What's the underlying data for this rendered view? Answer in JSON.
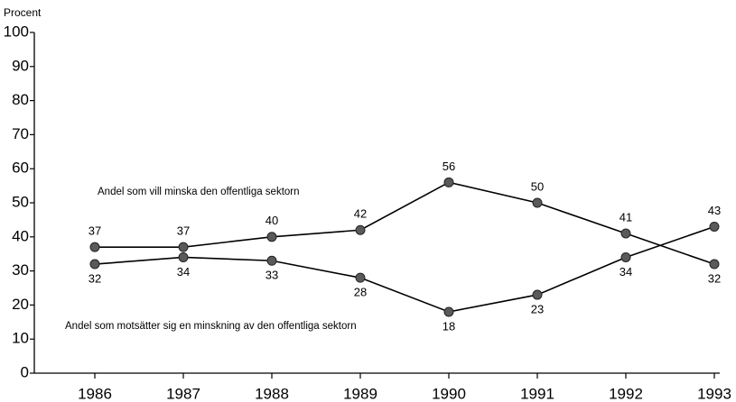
{
  "chart_data": {
    "type": "line",
    "y_label": "Procent",
    "categories": [
      "1986",
      "1987",
      "1988",
      "1989",
      "1990",
      "1991",
      "1992",
      "1993"
    ],
    "series": [
      {
        "name": "Andel som vill minska den offentliga sektorn",
        "color": "#000000",
        "marker_color": "#5a5a5a",
        "values": [
          37,
          37,
          40,
          42,
          56,
          50,
          41,
          32
        ]
      },
      {
        "name": "Andel som motsätter sig en minskning av den offentliga sektorn",
        "color": "#000000",
        "marker_color": "#5a5a5a",
        "values": [
          32,
          34,
          33,
          28,
          18,
          23,
          34,
          43
        ]
      }
    ],
    "ylim": [
      0,
      100
    ],
    "yticks": [
      0,
      10,
      20,
      30,
      40,
      50,
      60,
      70,
      80,
      90,
      100
    ],
    "grid": false
  }
}
